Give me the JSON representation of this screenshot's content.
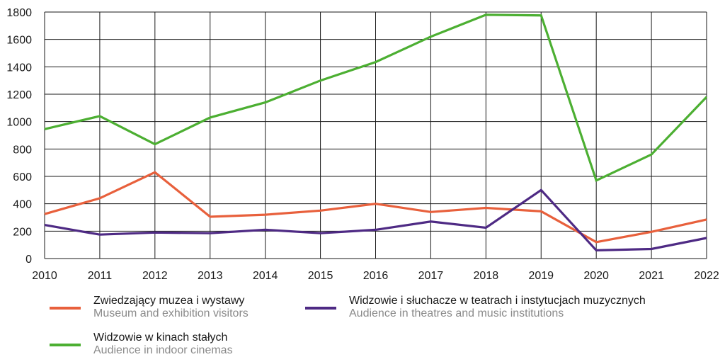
{
  "chart_data": {
    "type": "line",
    "x": [
      "2010",
      "2011",
      "2012",
      "2013",
      "2014",
      "2015",
      "2016",
      "2017",
      "2018",
      "2019",
      "2020",
      "2021",
      "2022"
    ],
    "ylim": [
      0,
      1800
    ],
    "yticks": [
      0,
      200,
      400,
      600,
      800,
      1000,
      1200,
      1400,
      1600,
      1800
    ],
    "grid": true,
    "legend_position": "bottom",
    "series": [
      {
        "key": "museums",
        "name": "Zwiedzający muzea i wystawy",
        "name_en": "Museum and exhibition visitors",
        "color": "#e8603c",
        "values": [
          325,
          440,
          630,
          305,
          320,
          350,
          400,
          340,
          370,
          345,
          120,
          195,
          285
        ]
      },
      {
        "key": "theatres",
        "name": "Widzowie i słuchacze w teatrach i instytucjach muzycznych",
        "name_en": "Audience in theatres and music institutions",
        "color": "#4e2a84",
        "values": [
          245,
          175,
          190,
          185,
          210,
          185,
          210,
          270,
          225,
          500,
          60,
          70,
          150
        ]
      },
      {
        "key": "cinemas",
        "name": "Widzowie w kinach stałych",
        "name_en": "Audience in indoor cinemas",
        "color": "#4caf32",
        "values": [
          945,
          1040,
          835,
          1030,
          1140,
          1300,
          1435,
          1620,
          1780,
          1775,
          570,
          760,
          1180
        ]
      }
    ]
  }
}
